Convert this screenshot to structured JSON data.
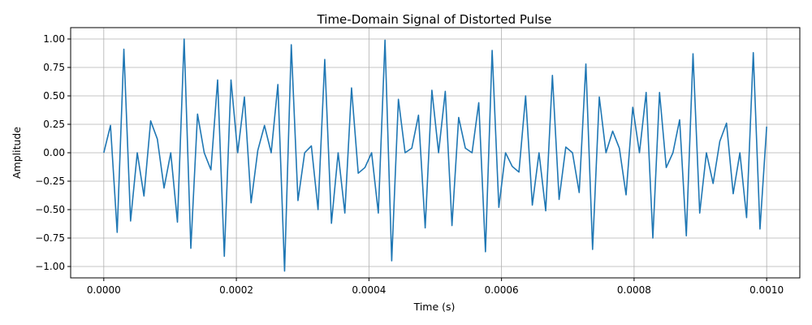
{
  "chart_data": {
    "type": "line",
    "title": "Time-Domain Signal of Distorted Pulse",
    "xlabel": "Time (s)",
    "ylabel": "Amplitude",
    "xlim": [
      -5e-05,
      0.00105
    ],
    "ylim": [
      -1.1,
      1.1
    ],
    "grid": true,
    "line_color": "#1f77b4",
    "xticks": [
      0,
      0.0002,
      0.0004,
      0.0006,
      0.0008,
      0.001
    ],
    "xtick_labels": [
      "0.0000",
      "0.0002",
      "0.0004",
      "0.0006",
      "0.0008",
      "0.0010"
    ],
    "yticks": [
      -1.0,
      -0.75,
      -0.5,
      -0.25,
      0.0,
      0.25,
      0.5,
      0.75,
      1.0
    ],
    "ytick_labels": [
      "−1.00",
      "−0.75",
      "−0.50",
      "−0.25",
      "0.00",
      "0.25",
      "0.50",
      "0.75",
      "1.00"
    ],
    "series": [
      {
        "x_start": 0,
        "x_step": 1.010101e-05,
        "values": [
          0.0,
          0.24,
          -0.7,
          0.91,
          -0.6,
          0.0,
          -0.38,
          0.28,
          0.12,
          -0.31,
          0.0,
          -0.61,
          1.0,
          -0.84,
          0.34,
          0.0,
          -0.15,
          0.64,
          -0.91,
          0.64,
          0.0,
          0.49,
          -0.44,
          0.02,
          0.24,
          0.0,
          0.6,
          -1.04,
          0.95,
          -0.42,
          0.0,
          0.06,
          -0.5,
          0.82,
          -0.62,
          0.0,
          -0.53,
          0.57,
          -0.18,
          -0.13,
          0.0,
          -0.53,
          0.99,
          -0.95,
          0.47,
          0.0,
          0.04,
          0.33,
          -0.66,
          0.55,
          0.0,
          0.54,
          -0.64,
          0.31,
          0.04,
          0.0,
          0.44,
          -0.87,
          0.9,
          -0.48,
          0.0,
          -0.12,
          -0.17,
          0.5,
          -0.46,
          0.0,
          -0.51,
          0.68,
          -0.41,
          0.05,
          0.0,
          -0.35,
          0.78,
          -0.85,
          0.49,
          0.0,
          0.19,
          0.04,
          -0.37,
          0.4,
          0.0,
          0.53,
          -0.75,
          0.53,
          -0.13,
          0.0,
          0.29,
          -0.73,
          0.87,
          -0.53,
          0.0,
          -0.27,
          0.1,
          0.26,
          -0.36,
          0.0,
          -0.57,
          0.88,
          -0.67,
          0.23
        ]
      }
    ]
  }
}
